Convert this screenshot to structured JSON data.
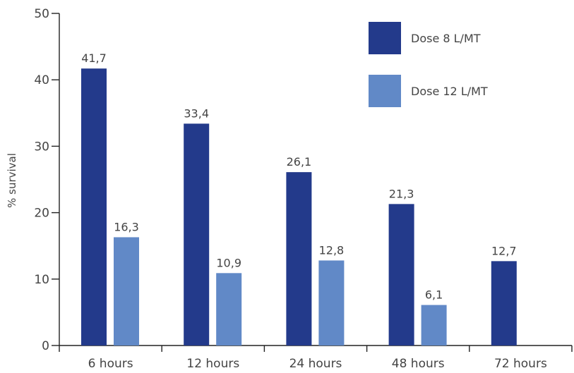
{
  "chart_data": {
    "type": "bar",
    "title": "",
    "xlabel": "",
    "ylabel": "% survival",
    "ylim": [
      0,
      50
    ],
    "yticks": [
      0,
      10,
      20,
      30,
      40,
      50
    ],
    "categories": [
      "6 hours",
      "12 hours",
      "24 hours",
      "48 hours",
      "72 hours"
    ],
    "series": [
      {
        "name": "Dose  8 L/MT",
        "color": "#233a8b",
        "values": [
          41.7,
          33.4,
          26.1,
          21.3,
          12.7
        ],
        "labels": [
          "41,7",
          "33,4",
          "26,1",
          "21,3",
          "12,7"
        ]
      },
      {
        "name": "Dose 12 L/MT",
        "color": "#6189c7",
        "values": [
          16.3,
          10.9,
          12.8,
          6.1,
          null
        ],
        "labels": [
          "16,3",
          "10,9",
          "12,8",
          "6,1",
          ""
        ]
      }
    ],
    "grid": false,
    "legend_position": "top-right",
    "axis_color": "#222222",
    "text_color": "#444444"
  }
}
